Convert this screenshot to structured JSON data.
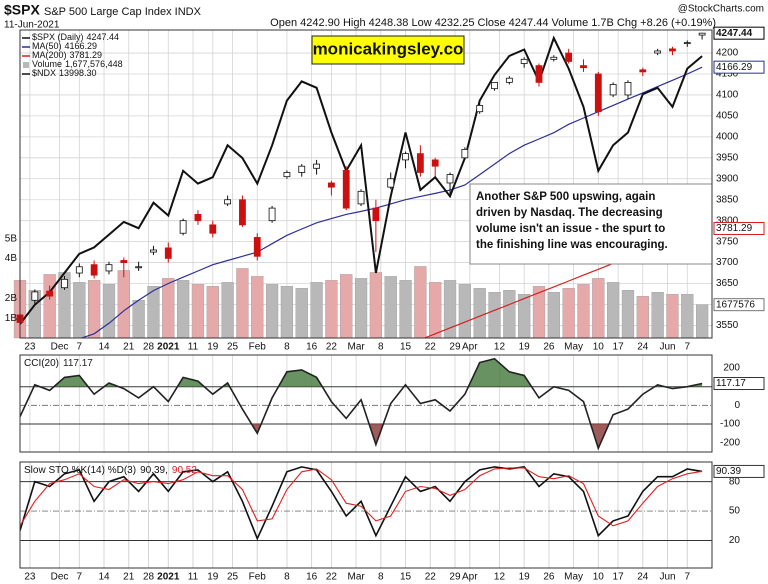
{
  "chart_data": [
    {
      "type": "candlestick",
      "title": "$SPX",
      "subtitle": "S&P 500 Large Cap Index INDX",
      "date": "11-Jun-2021",
      "quote": "Open 4242.90 High 4248.38 Low 4232.25 Close 4247.44 Volume 1.7B Chg +8.26 (+0.19%)",
      "source": "@StockCharts.com",
      "watermark": "monicakingsley.co",
      "annotation": [
        "Another S&P 500 upswing, again",
        "driven by Nasdaq. The decreasing",
        "volume isn't an issue - the spurt to",
        "the finishing line was encouraging."
      ],
      "name": "$SPX (Daily)",
      "x": [
        0,
        3,
        6,
        9,
        12,
        15,
        18,
        21,
        24,
        27,
        30,
        33,
        36,
        39,
        42,
        45,
        48,
        51,
        54,
        57,
        60,
        63,
        66,
        69,
        72,
        75,
        78,
        81,
        84,
        87,
        90,
        93,
        96,
        99,
        102,
        105,
        108,
        111,
        114,
        117,
        120,
        123,
        126,
        129,
        132,
        135,
        138
      ],
      "open": [
        3575,
        3610,
        3632,
        3640,
        3675,
        3695,
        3680,
        3705,
        3688,
        3725,
        3735,
        3770,
        3815,
        3790,
        3840,
        3850,
        3760,
        3800,
        3905,
        3915,
        3925,
        3890,
        3920,
        3840,
        3830,
        3880,
        3945,
        3960,
        3945,
        3890,
        3950,
        4060,
        4115,
        4130,
        4175,
        4170,
        4185,
        4200,
        4170,
        4150,
        4100,
        4100,
        4160,
        4200,
        4210,
        4225,
        4242.9
      ],
      "high": [
        3582,
        3636,
        3645,
        3668,
        3698,
        3705,
        3702,
        3712,
        3702,
        3740,
        3748,
        3805,
        3825,
        3800,
        3860,
        3860,
        3770,
        3835,
        3920,
        3935,
        3945,
        3895,
        3930,
        3875,
        3850,
        3915,
        3965,
        3980,
        3950,
        3915,
        3975,
        4085,
        4130,
        4145,
        4190,
        4175,
        4195,
        4210,
        4185,
        4155,
        4130,
        4135,
        4165,
        4210,
        4215,
        4230,
        4248.38
      ],
      "low": [
        3550,
        3600,
        3612,
        3635,
        3665,
        3662,
        3672,
        3665,
        3680,
        3718,
        3700,
        3765,
        3790,
        3760,
        3835,
        3785,
        3705,
        3795,
        3900,
        3905,
        3910,
        3860,
        3825,
        3835,
        3725,
        3875,
        3925,
        3905,
        3905,
        3855,
        3945,
        4055,
        4110,
        4125,
        4165,
        4120,
        4180,
        4175,
        4155,
        4050,
        4095,
        4090,
        4145,
        4195,
        4195,
        4215,
        4232.25
      ],
      "close": [
        3557,
        3630,
        3620,
        3660,
        3690,
        3670,
        3695,
        3700,
        3690,
        3730,
        3710,
        3800,
        3800,
        3770,
        3850,
        3790,
        3715,
        3830,
        3915,
        3930,
        3935,
        3880,
        3830,
        3870,
        3800,
        3900,
        3960,
        3915,
        3930,
        3910,
        3970,
        4075,
        4130,
        4140,
        4185,
        4130,
        4190,
        4180,
        4165,
        4060,
        4125,
        4130,
        4155,
        4205,
        4205,
        4225,
        4247.44
      ],
      "up_color": "#ffffff",
      "down_color": "#cc1010",
      "series": [
        {
          "name": "MA(50)",
          "color": "#2b2f9a",
          "values": [
            3465,
            3478,
            3492,
            3505,
            3518,
            3530,
            3555,
            3585,
            3610,
            3633,
            3650,
            3665,
            3680,
            3695,
            3705,
            3715,
            3725,
            3745,
            3765,
            3780,
            3795,
            3805,
            3815,
            3822,
            3830,
            3840,
            3850,
            3858,
            3865,
            3873,
            3885,
            3910,
            3935,
            3960,
            3980,
            3995,
            4010,
            4030,
            4045,
            4060,
            4075,
            4090,
            4105,
            4120,
            4135,
            4150,
            4166.29
          ]
        },
        {
          "name": "MA(200)",
          "color": "#d42020",
          "values": [
            3138,
            3152,
            3166,
            3180,
            3194,
            3208,
            3222,
            3236,
            3250,
            3264,
            3278,
            3292,
            3306,
            3320,
            3334,
            3348,
            3362,
            3376,
            3390,
            3404,
            3418,
            3432,
            3446,
            3460,
            3474,
            3488,
            3502,
            3516,
            3530,
            3544,
            3558,
            3572,
            3586,
            3600,
            3614,
            3628,
            3642,
            3656,
            3670,
            3684,
            3698,
            3712,
            3726,
            3740,
            3754,
            3768,
            3781.29
          ]
        },
        {
          "name": "Volume",
          "type": "bar",
          "axis": "y2",
          "color": "#b8b8b8",
          "down_color": "#e6a9a9",
          "legend_label": "1,677,576,448",
          "end_label": "1677576",
          "values": [
            2900000000,
            2400000000,
            3200000000,
            3300000000,
            2800000000,
            2900000000,
            2700000000,
            3400000000,
            1900000000,
            2600000000,
            3000000000,
            2900000000,
            2700000000,
            2600000000,
            2800000000,
            3500000000,
            3100000000,
            2700000000,
            2600000000,
            2500000000,
            2800000000,
            2900000000,
            3200000000,
            3000000000,
            3300000000,
            3100000000,
            2900000000,
            3600000000,
            2800000000,
            2900000000,
            2700000000,
            2500000000,
            2300000000,
            2400000000,
            2200000000,
            2600000000,
            2300000000,
            2500000000,
            2700000000,
            3000000000,
            2800000000,
            2400000000,
            2100000000,
            2300000000,
            2200000000,
            2200000000,
            1677576448
          ]
        },
        {
          "name": "$NDX",
          "axis": "none",
          "color": "#111111",
          "legend_label": "13998.30",
          "values": [
            11900,
            12050,
            12150,
            12300,
            12450,
            12500,
            12600,
            12700,
            12650,
            12850,
            12750,
            13100,
            13000,
            13050,
            13300,
            13200,
            13000,
            13300,
            13650,
            13800,
            13750,
            13400,
            13100,
            13300,
            12300,
            12900,
            13400,
            12950,
            13050,
            12900,
            13200,
            13650,
            13850,
            14000,
            14050,
            13800,
            14140,
            13900,
            13600,
            13100,
            13300,
            13400,
            13700,
            13750,
            13600,
            13900,
            13998.3
          ]
        }
      ],
      "xlim": [
        0,
        140
      ],
      "xticks": [
        {
          "value": 2,
          "label": "23"
        },
        {
          "value": 8,
          "label": "Dec"
        },
        {
          "value": 12,
          "label": "7"
        },
        {
          "value": 17,
          "label": "14"
        },
        {
          "value": 22,
          "label": "21"
        },
        {
          "value": 26,
          "label": "28"
        },
        {
          "value": 30,
          "label": "2021"
        },
        {
          "value": 35,
          "label": "11"
        },
        {
          "value": 39,
          "label": "19"
        },
        {
          "value": 43,
          "label": "25"
        },
        {
          "value": 48,
          "label": "Feb"
        },
        {
          "value": 54,
          "label": "8"
        },
        {
          "value": 59,
          "label": "16"
        },
        {
          "value": 63,
          "label": "22"
        },
        {
          "value": 68,
          "label": "Mar"
        },
        {
          "value": 73,
          "label": "8"
        },
        {
          "value": 78,
          "label": "15"
        },
        {
          "value": 83,
          "label": "22"
        },
        {
          "value": 88,
          "label": "29"
        },
        {
          "value": 91,
          "label": "Apr"
        },
        {
          "value": 97,
          "label": "12"
        },
        {
          "value": 102,
          "label": "19"
        },
        {
          "value": 107,
          "label": "26"
        },
        {
          "value": 112,
          "label": "May"
        },
        {
          "value": 117,
          "label": "10"
        },
        {
          "value": 121,
          "label": "17"
        },
        {
          "value": 126,
          "label": "24"
        },
        {
          "value": 131,
          "label": "Jun"
        },
        {
          "value": 135,
          "label": "7"
        }
      ],
      "ylim": [
        3520,
        4255
      ],
      "yticks": [
        3550,
        3600,
        3650,
        3700,
        3750,
        3800,
        3850,
        3900,
        3950,
        4000,
        4050,
        4100,
        4150,
        4200
      ],
      "y2lim": [
        0,
        15500000000
      ],
      "y2ticks": [
        {
          "value": 1000000000,
          "label": "1B"
        },
        {
          "value": 2000000000,
          "label": "2B"
        },
        {
          "value": 4000000000,
          "label": "4B"
        },
        {
          "value": 5000000000,
          "label": "5B"
        }
      ],
      "grid": true
    },
    {
      "type": "line",
      "title": "CCI(20)",
      "x": [
        0,
        3,
        6,
        9,
        12,
        15,
        18,
        21,
        24,
        27,
        30,
        33,
        36,
        39,
        42,
        45,
        48,
        51,
        54,
        57,
        60,
        63,
        66,
        69,
        72,
        75,
        78,
        81,
        84,
        87,
        90,
        93,
        96,
        99,
        102,
        105,
        108,
        111,
        114,
        117,
        120,
        123,
        126,
        129,
        132,
        135,
        138
      ],
      "xlim": [
        0,
        140
      ],
      "series": [
        {
          "color": "#222222",
          "fills": [
            {
              "above": 100,
              "color": "#4f7f46"
            },
            {
              "below": -100,
              "color": "#8e4040"
            }
          ],
          "values": [
            -60,
            110,
            80,
            150,
            160,
            60,
            120,
            90,
            40,
            100,
            20,
            150,
            130,
            60,
            120,
            -20,
            -150,
            40,
            180,
            190,
            150,
            20,
            -70,
            30,
            -210,
            10,
            110,
            10,
            30,
            -30,
            60,
            230,
            250,
            180,
            160,
            40,
            100,
            80,
            20,
            -230,
            -50,
            -20,
            60,
            110,
            90,
            100,
            117.17
          ]
        }
      ],
      "ylim": [
        -250,
        270
      ],
      "yticks": [
        -200,
        -100,
        0,
        200
      ],
      "levels": [
        {
          "value": 100,
          "style": "solid"
        },
        {
          "value": 0,
          "style": "dashdot"
        },
        {
          "value": -100,
          "style": "solid"
        }
      ]
    },
    {
      "type": "line",
      "title": "Slow STO %K(14) %D(3)",
      "x": [
        0,
        3,
        6,
        9,
        12,
        15,
        18,
        21,
        24,
        27,
        30,
        33,
        36,
        39,
        42,
        45,
        48,
        51,
        54,
        57,
        60,
        63,
        66,
        69,
        72,
        75,
        78,
        81,
        84,
        87,
        90,
        93,
        96,
        99,
        102,
        105,
        108,
        111,
        114,
        117,
        120,
        123,
        126,
        129,
        132,
        135,
        138
      ],
      "xlim": [
        0,
        140
      ],
      "series": [
        {
          "color": "#111111",
          "legend_label": "90.39,",
          "values": [
            30,
            80,
            75,
            88,
            92,
            60,
            80,
            85,
            70,
            88,
            70,
            90,
            92,
            80,
            90,
            60,
            22,
            55,
            90,
            95,
            92,
            70,
            45,
            60,
            25,
            55,
            85,
            70,
            75,
            60,
            80,
            92,
            95,
            93,
            95,
            75,
            88,
            85,
            70,
            25,
            40,
            45,
            70,
            85,
            85,
            93,
            90.39
          ]
        },
        {
          "color": "#e02020",
          "values": [
            35,
            60,
            78,
            82,
            88,
            75,
            72,
            82,
            78,
            80,
            78,
            82,
            90,
            86,
            86,
            72,
            40,
            42,
            72,
            90,
            93,
            82,
            58,
            55,
            40,
            45,
            70,
            75,
            73,
            66,
            72,
            86,
            93,
            94,
            94,
            85,
            83,
            86,
            78,
            45,
            35,
            40,
            58,
            75,
            83,
            88,
            90.52
          ]
        }
      ],
      "ylim": [
        -8,
        100
      ],
      "yticks": [
        20,
        50,
        80
      ],
      "levels": [
        {
          "value": 80,
          "style": "solid"
        },
        {
          "value": 50,
          "style": "dashdot"
        },
        {
          "value": 20,
          "style": "solid"
        }
      ],
      "xticks": [
        {
          "value": 2,
          "label": "23"
        },
        {
          "value": 8,
          "label": "Dec"
        },
        {
          "value": 12,
          "label": "7"
        },
        {
          "value": 17,
          "label": "14"
        },
        {
          "value": 22,
          "label": "21"
        },
        {
          "value": 26,
          "label": "28"
        },
        {
          "value": 30,
          "label": "2021"
        },
        {
          "value": 35,
          "label": "11"
        },
        {
          "value": 39,
          "label": "19"
        },
        {
          "value": 43,
          "label": "25"
        },
        {
          "value": 48,
          "label": "Feb"
        },
        {
          "value": 54,
          "label": "8"
        },
        {
          "value": 59,
          "label": "16"
        },
        {
          "value": 63,
          "label": "22"
        },
        {
          "value": 68,
          "label": "Mar"
        },
        {
          "value": 73,
          "label": "8"
        },
        {
          "value": 78,
          "label": "15"
        },
        {
          "value": 83,
          "label": "22"
        },
        {
          "value": 88,
          "label": "29"
        },
        {
          "value": 91,
          "label": "Apr"
        },
        {
          "value": 97,
          "label": "12"
        },
        {
          "value": 102,
          "label": "19"
        },
        {
          "value": 107,
          "label": "26"
        },
        {
          "value": 112,
          "label": "May"
        },
        {
          "value": 117,
          "label": "10"
        },
        {
          "value": 121,
          "label": "17"
        },
        {
          "value": 126,
          "label": "24"
        },
        {
          "value": 131,
          "label": "Jun"
        },
        {
          "value": 135,
          "label": "7"
        }
      ]
    }
  ]
}
